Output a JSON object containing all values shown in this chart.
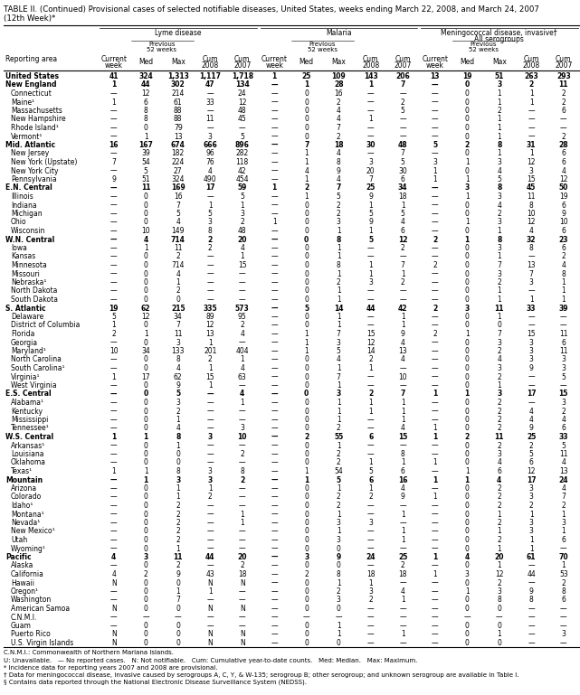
{
  "title_line1": "TABLE II. (Continued) Provisional cases of selected notifiable diseases, United States, weeks ending March 22, 2008, and March 24, 2007",
  "title_line2": "(12th Week)*",
  "col_groups": [
    "Lyme disease",
    "Malaria",
    "Meningococcal disease, invasive†\nAll serogroups"
  ],
  "sub_headers": [
    "Current\nweek",
    "Previous\n52 weeks\nMed  Max",
    "Cum\n2008",
    "Cum\n2007"
  ],
  "col_header_row": [
    "Reporting area",
    "Current\nweek",
    "Med",
    "Max",
    "Cum\n2008",
    "Cum\n2007",
    "Current\nweek",
    "Med",
    "Max",
    "Cum\n2008",
    "Cum\n2007",
    "Current\nweek",
    "Med",
    "Max",
    "Cum\n2008",
    "Cum\n2007"
  ],
  "rows": [
    [
      "United States",
      "41",
      "324",
      "1,313",
      "1,117",
      "1,718",
      "1",
      "25",
      "109",
      "143",
      "206",
      "13",
      "19",
      "51",
      "263",
      "293"
    ],
    [
      "New England",
      "1",
      "44",
      "302",
      "47",
      "134",
      "—",
      "1",
      "28",
      "1",
      "7",
      "—",
      "0",
      "3",
      "2",
      "11"
    ],
    [
      "Connecticut",
      "—",
      "12",
      "214",
      "—",
      "24",
      "—",
      "0",
      "16",
      "—",
      "—",
      "—",
      "0",
      "1",
      "1",
      "2"
    ],
    [
      "Maine¹",
      "1",
      "6",
      "61",
      "33",
      "12",
      "—",
      "0",
      "2",
      "—",
      "2",
      "—",
      "0",
      "1",
      "1",
      "2"
    ],
    [
      "Massachusetts",
      "—",
      "8",
      "88",
      "—",
      "48",
      "—",
      "0",
      "4",
      "—",
      "5",
      "—",
      "0",
      "2",
      "—",
      "6"
    ],
    [
      "New Hampshire",
      "—",
      "8",
      "88",
      "11",
      "45",
      "—",
      "0",
      "4",
      "1",
      "—",
      "—",
      "0",
      "1",
      "—",
      "—"
    ],
    [
      "Rhode Island¹",
      "—",
      "0",
      "79",
      "—",
      "—",
      "—",
      "0",
      "7",
      "—",
      "—",
      "—",
      "0",
      "1",
      "—",
      "—"
    ],
    [
      "Vermont¹",
      "—",
      "1",
      "13",
      "3",
      "5",
      "—",
      "0",
      "2",
      "—",
      "—",
      "—",
      "0",
      "1",
      "—",
      "2"
    ],
    [
      "Mid. Atlantic",
      "16",
      "167",
      "674",
      "666",
      "896",
      "—",
      "7",
      "18",
      "30",
      "48",
      "5",
      "2",
      "8",
      "31",
      "28"
    ],
    [
      "New Jersey",
      "—",
      "39",
      "182",
      "96",
      "282",
      "—",
      "1",
      "4",
      "—",
      "7",
      "—",
      "0",
      "1",
      "1",
      "6"
    ],
    [
      "New York (Upstate)",
      "7",
      "54",
      "224",
      "76",
      "118",
      "—",
      "1",
      "8",
      "3",
      "5",
      "3",
      "1",
      "3",
      "12",
      "6"
    ],
    [
      "New York City",
      "—",
      "5",
      "27",
      "4",
      "42",
      "—",
      "4",
      "9",
      "20",
      "30",
      "1",
      "0",
      "4",
      "3",
      "4"
    ],
    [
      "Pennsylvania",
      "9",
      "51",
      "324",
      "490",
      "454",
      "—",
      "1",
      "4",
      "7",
      "6",
      "1",
      "1",
      "5",
      "15",
      "12"
    ],
    [
      "E.N. Central",
      "—",
      "11",
      "169",
      "17",
      "59",
      "1",
      "2",
      "7",
      "25",
      "34",
      "—",
      "3",
      "8",
      "45",
      "50"
    ],
    [
      "Illinois",
      "—",
      "0",
      "16",
      "—",
      "5",
      "—",
      "1",
      "5",
      "9",
      "18",
      "—",
      "1",
      "3",
      "11",
      "19"
    ],
    [
      "Indiana",
      "—",
      "0",
      "7",
      "1",
      "1",
      "—",
      "0",
      "2",
      "1",
      "1",
      "—",
      "0",
      "4",
      "8",
      "6"
    ],
    [
      "Michigan",
      "—",
      "0",
      "5",
      "5",
      "3",
      "—",
      "0",
      "2",
      "5",
      "5",
      "—",
      "0",
      "2",
      "10",
      "9"
    ],
    [
      "Ohio",
      "—",
      "0",
      "4",
      "3",
      "2",
      "1",
      "0",
      "3",
      "9",
      "4",
      "—",
      "1",
      "3",
      "12",
      "10"
    ],
    [
      "Wisconsin",
      "—",
      "10",
      "149",
      "8",
      "48",
      "—",
      "0",
      "1",
      "1",
      "6",
      "—",
      "0",
      "1",
      "4",
      "6"
    ],
    [
      "W.N. Central",
      "—",
      "4",
      "714",
      "2",
      "20",
      "—",
      "0",
      "8",
      "5",
      "12",
      "2",
      "1",
      "8",
      "32",
      "23"
    ],
    [
      "Iowa",
      "—",
      "1",
      "11",
      "2",
      "4",
      "—",
      "0",
      "1",
      "—",
      "2",
      "—",
      "0",
      "3",
      "8",
      "6"
    ],
    [
      "Kansas",
      "—",
      "0",
      "2",
      "—",
      "1",
      "—",
      "0",
      "1",
      "—",
      "—",
      "—",
      "0",
      "1",
      "—",
      "2"
    ],
    [
      "Minnesota",
      "—",
      "0",
      "714",
      "—",
      "15",
      "—",
      "0",
      "8",
      "1",
      "7",
      "2",
      "0",
      "7",
      "13",
      "4"
    ],
    [
      "Missouri",
      "—",
      "0",
      "4",
      "—",
      "—",
      "—",
      "0",
      "1",
      "1",
      "1",
      "—",
      "0",
      "3",
      "7",
      "8"
    ],
    [
      "Nebraska¹",
      "—",
      "0",
      "1",
      "—",
      "—",
      "—",
      "0",
      "2",
      "3",
      "2",
      "—",
      "0",
      "2",
      "3",
      "1"
    ],
    [
      "North Dakota",
      "—",
      "0",
      "2",
      "—",
      "—",
      "—",
      "0",
      "1",
      "—",
      "—",
      "—",
      "0",
      "1",
      "—",
      "1"
    ],
    [
      "South Dakota",
      "—",
      "0",
      "0",
      "—",
      "—",
      "—",
      "0",
      "1",
      "—",
      "—",
      "—",
      "0",
      "1",
      "1",
      "1"
    ],
    [
      "S. Atlantic",
      "19",
      "62",
      "215",
      "335",
      "573",
      "—",
      "5",
      "14",
      "44",
      "42",
      "2",
      "3",
      "11",
      "33",
      "39"
    ],
    [
      "Delaware",
      "5",
      "12",
      "34",
      "89",
      "95",
      "—",
      "0",
      "1",
      "—",
      "1",
      "—",
      "0",
      "1",
      "—",
      "—"
    ],
    [
      "District of Columbia",
      "1",
      "0",
      "7",
      "12",
      "2",
      "—",
      "0",
      "1",
      "—",
      "1",
      "—",
      "0",
      "0",
      "—",
      "—"
    ],
    [
      "Florida",
      "2",
      "1",
      "11",
      "13",
      "4",
      "—",
      "1",
      "7",
      "15",
      "9",
      "2",
      "1",
      "7",
      "15",
      "11"
    ],
    [
      "Georgia",
      "—",
      "0",
      "3",
      "1",
      "—",
      "—",
      "1",
      "3",
      "12",
      "4",
      "—",
      "0",
      "3",
      "3",
      "6"
    ],
    [
      "Maryland¹",
      "10",
      "34",
      "133",
      "201",
      "404",
      "—",
      "1",
      "5",
      "14",
      "13",
      "—",
      "0",
      "2",
      "3",
      "11"
    ],
    [
      "North Carolina",
      "—",
      "0",
      "8",
      "2",
      "1",
      "—",
      "0",
      "4",
      "2",
      "4",
      "—",
      "0",
      "4",
      "3",
      "3"
    ],
    [
      "South Carolina¹",
      "—",
      "0",
      "4",
      "1",
      "4",
      "—",
      "0",
      "1",
      "1",
      "—",
      "—",
      "0",
      "3",
      "9",
      "3"
    ],
    [
      "Virginia¹",
      "1",
      "17",
      "62",
      "15",
      "63",
      "—",
      "0",
      "7",
      "—",
      "10",
      "—",
      "0",
      "2",
      "—",
      "5"
    ],
    [
      "West Virginia",
      "—",
      "0",
      "9",
      "1",
      "—",
      "—",
      "0",
      "1",
      "—",
      "—",
      "—",
      "0",
      "1",
      "—",
      "—"
    ],
    [
      "E.S. Central",
      "—",
      "0",
      "5",
      "—",
      "4",
      "—",
      "0",
      "3",
      "2",
      "7",
      "1",
      "1",
      "3",
      "17",
      "15"
    ],
    [
      "Alabama¹",
      "—",
      "0",
      "3",
      "—",
      "1",
      "—",
      "0",
      "1",
      "1",
      "1",
      "—",
      "0",
      "2",
      "—",
      "3"
    ],
    [
      "Kentucky",
      "—",
      "0",
      "2",
      "—",
      "—",
      "—",
      "0",
      "1",
      "1",
      "1",
      "—",
      "0",
      "2",
      "4",
      "2"
    ],
    [
      "Mississippi",
      "—",
      "0",
      "1",
      "—",
      "—",
      "—",
      "0",
      "1",
      "—",
      "1",
      "—",
      "0",
      "2",
      "4",
      "4"
    ],
    [
      "Tennessee¹",
      "—",
      "0",
      "4",
      "—",
      "3",
      "—",
      "0",
      "2",
      "—",
      "4",
      "1",
      "0",
      "2",
      "9",
      "6"
    ],
    [
      "W.S. Central",
      "1",
      "1",
      "8",
      "3",
      "10",
      "—",
      "2",
      "55",
      "6",
      "15",
      "1",
      "2",
      "11",
      "25",
      "33"
    ],
    [
      "Arkansas¹",
      "—",
      "0",
      "1",
      "—",
      "—",
      "—",
      "0",
      "1",
      "—",
      "—",
      "—",
      "0",
      "2",
      "2",
      "5"
    ],
    [
      "Louisiana",
      "—",
      "0",
      "0",
      "—",
      "2",
      "—",
      "0",
      "2",
      "—",
      "8",
      "—",
      "0",
      "3",
      "5",
      "11"
    ],
    [
      "Oklahoma",
      "—",
      "0",
      "0",
      "—",
      "—",
      "—",
      "0",
      "2",
      "1",
      "1",
      "1",
      "0",
      "4",
      "6",
      "4"
    ],
    [
      "Texas¹",
      "1",
      "1",
      "8",
      "3",
      "8",
      "—",
      "1",
      "54",
      "5",
      "6",
      "—",
      "1",
      "6",
      "12",
      "13"
    ],
    [
      "Mountain",
      "—",
      "1",
      "3",
      "3",
      "2",
      "—",
      "1",
      "5",
      "6",
      "16",
      "1",
      "1",
      "4",
      "17",
      "24"
    ],
    [
      "Arizona",
      "—",
      "0",
      "1",
      "1",
      "—",
      "—",
      "0",
      "1",
      "1",
      "4",
      "—",
      "0",
      "2",
      "3",
      "4"
    ],
    [
      "Colorado",
      "—",
      "0",
      "1",
      "2",
      "—",
      "—",
      "0",
      "2",
      "2",
      "9",
      "1",
      "0",
      "2",
      "3",
      "7"
    ],
    [
      "Idaho¹",
      "—",
      "0",
      "2",
      "—",
      "—",
      "—",
      "0",
      "2",
      "—",
      "—",
      "—",
      "0",
      "2",
      "2",
      "2"
    ],
    [
      "Montana¹",
      "—",
      "0",
      "2",
      "—",
      "1",
      "—",
      "0",
      "1",
      "—",
      "1",
      "—",
      "0",
      "1",
      "1",
      "1"
    ],
    [
      "Nevada¹",
      "—",
      "0",
      "2",
      "—",
      "1",
      "—",
      "0",
      "3",
      "3",
      "—",
      "—",
      "0",
      "2",
      "3",
      "3"
    ],
    [
      "New Mexico¹",
      "—",
      "0",
      "2",
      "—",
      "—",
      "—",
      "0",
      "1",
      "—",
      "1",
      "—",
      "0",
      "1",
      "3",
      "1"
    ],
    [
      "Utah",
      "—",
      "0",
      "2",
      "—",
      "—",
      "—",
      "0",
      "3",
      "—",
      "1",
      "—",
      "0",
      "2",
      "1",
      "6"
    ],
    [
      "Wyoming¹",
      "—",
      "0",
      "1",
      "—",
      "—",
      "—",
      "0",
      "0",
      "—",
      "—",
      "—",
      "0",
      "1",
      "1",
      "—"
    ],
    [
      "Pacific",
      "4",
      "3",
      "11",
      "44",
      "20",
      "—",
      "3",
      "9",
      "24",
      "25",
      "1",
      "4",
      "20",
      "61",
      "70"
    ],
    [
      "Alaska",
      "—",
      "0",
      "2",
      "—",
      "2",
      "—",
      "0",
      "0",
      "—",
      "2",
      "—",
      "0",
      "1",
      "—",
      "1"
    ],
    [
      "California",
      "4",
      "2",
      "9",
      "43",
      "18",
      "—",
      "2",
      "8",
      "18",
      "18",
      "1",
      "3",
      "12",
      "44",
      "53"
    ],
    [
      "Hawaii",
      "N",
      "0",
      "0",
      "N",
      "N",
      "—",
      "0",
      "1",
      "1",
      "—",
      "—",
      "0",
      "2",
      "—",
      "2"
    ],
    [
      "Oregon¹",
      "—",
      "0",
      "1",
      "1",
      "—",
      "—",
      "0",
      "2",
      "3",
      "4",
      "—",
      "1",
      "3",
      "9",
      "8"
    ],
    [
      "Washington",
      "—",
      "0",
      "7",
      "—",
      "—",
      "—",
      "0",
      "3",
      "2",
      "1",
      "—",
      "0",
      "8",
      "8",
      "6"
    ],
    [
      "American Samoa",
      "N",
      "0",
      "0",
      "N",
      "N",
      "—",
      "0",
      "0",
      "—",
      "—",
      "—",
      "0",
      "0",
      "—",
      "—"
    ],
    [
      "C.N.M.I.",
      "—",
      "—",
      "—",
      "—",
      "—",
      "—",
      "—",
      "—",
      "—",
      "—",
      "—",
      "—",
      "—",
      "—",
      "—"
    ],
    [
      "Guam",
      "—",
      "0",
      "0",
      "—",
      "—",
      "—",
      "0",
      "1",
      "—",
      "—",
      "—",
      "0",
      "0",
      "—",
      "—"
    ],
    [
      "Puerto Rico",
      "N",
      "0",
      "0",
      "N",
      "N",
      "—",
      "0",
      "1",
      "—",
      "1",
      "—",
      "0",
      "1",
      "—",
      "3"
    ],
    [
      "U.S. Virgin Islands",
      "N",
      "0",
      "0",
      "N",
      "N",
      "—",
      "0",
      "0",
      "—",
      "—",
      "—",
      "0",
      "0",
      "—",
      "—"
    ]
  ],
  "bold_rows": [
    "United States",
    "New England",
    "Mid. Atlantic",
    "E.N. Central",
    "W.N. Central",
    "S. Atlantic",
    "E.S. Central",
    "W.S. Central",
    "Mountain",
    "Pacific"
  ],
  "footnotes": [
    "C.N.M.I.: Commonwealth of Northern Mariana Islands.",
    "U: Unavailable.   — No reported cases.   N: Not notifiable.   Cum: Cumulative year-to-date counts.   Med: Median.   Max: Maximum.",
    "* Incidence data for reporting years 2007 and 2008 are provisional.",
    "† Data for meningococcal disease, invasive caused by serogroups A, C, Y, & W-135; serogroup B; other serogroup; and unknown serogroup are available in Table I.",
    "§ Contains data reported through the National Electronic Disease Surveillance System (NEDSS)."
  ]
}
